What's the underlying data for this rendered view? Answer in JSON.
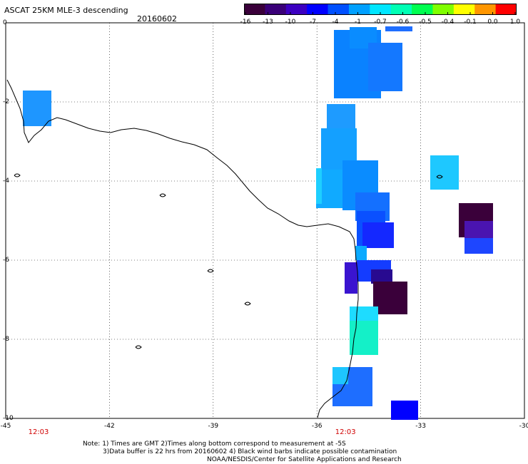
{
  "header": {
    "title": "ASCAT 25KM MLE-3 descending",
    "date": "20160602"
  },
  "colorbar": {
    "labels": [
      "-16",
      "-13",
      "-10",
      "-7",
      "-4",
      "-1",
      "-0.7",
      "-0.6",
      "-0.5",
      "-0.4",
      "-0.1",
      "0.0",
      "1.0"
    ],
    "colors": [
      "#3a003a",
      "#3a0078",
      "#3c00c0",
      "#0000ff",
      "#0050ff",
      "#00a0ff",
      "#00e6ff",
      "#00ffb4",
      "#00ff50",
      "#80ff00",
      "#ffff00",
      "#ff9600",
      "#ff0000"
    ]
  },
  "map": {
    "lon_ticks": [
      "-45",
      "-42",
      "-39",
      "-36",
      "-33",
      "-30"
    ],
    "lat_ticks": [
      "0",
      "-2",
      "-4",
      "-6",
      "-8",
      "-10"
    ],
    "lon_values": [
      -45,
      -42,
      -39,
      -36,
      -33,
      -30
    ],
    "lat_values": [
      0,
      -2,
      -4,
      -6,
      -8,
      -10
    ],
    "time_labels": [
      {
        "text": "12:03",
        "lon": -45
      },
      {
        "text": "12:03",
        "lon": -36
      }
    ]
  },
  "footer": {
    "line1": "Note: 1) Times are GMT 2)Times along bottom correspond to measurement at -5S",
    "line2": "3)Data buffer is 22 hrs from 20160602 4) Black wind barbs indicate possible contamination",
    "line3": "NOAA/NESDIS/Center for Satellite Applications and Research"
  }
}
